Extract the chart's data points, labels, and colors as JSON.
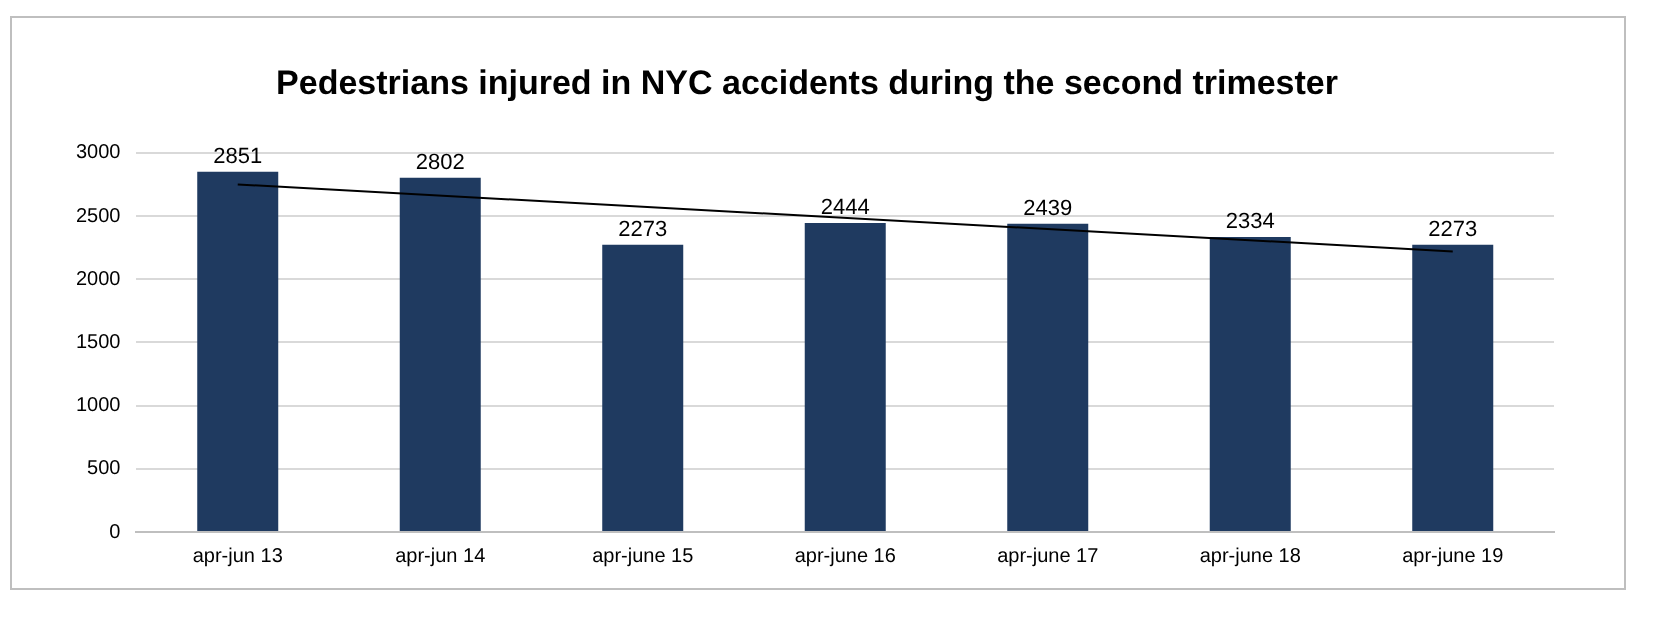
{
  "chart_data": {
    "type": "bar",
    "title": "Pedestrians injured in NYC accidents during the second trimester",
    "categories": [
      "apr-jun 13",
      "apr-jun 14",
      "apr-june 15",
      "apr-june 16",
      "apr-june 17",
      "apr-june 18",
      "apr-june 19"
    ],
    "series": [
      {
        "color": "#1f3a60",
        "values": [
          2851,
          2802,
          2273,
          2444,
          2439,
          2334,
          2273
        ],
        "value_labels": [
          "2851",
          "2802",
          "2273",
          "2444",
          "2439",
          "2334",
          "2273"
        ]
      },
      {
        "type": "line",
        "color": "#000000",
        "x": [
          "apr-jun 13",
          "apr-june 19"
        ],
        "values": [
          2750,
          2220
        ]
      }
    ],
    "ylim": [
      0,
      3000
    ],
    "yticks": [
      0,
      500,
      1000,
      1500,
      2000,
      2500,
      3000
    ],
    "grid": "y",
    "legend": false,
    "marker": "none"
  }
}
